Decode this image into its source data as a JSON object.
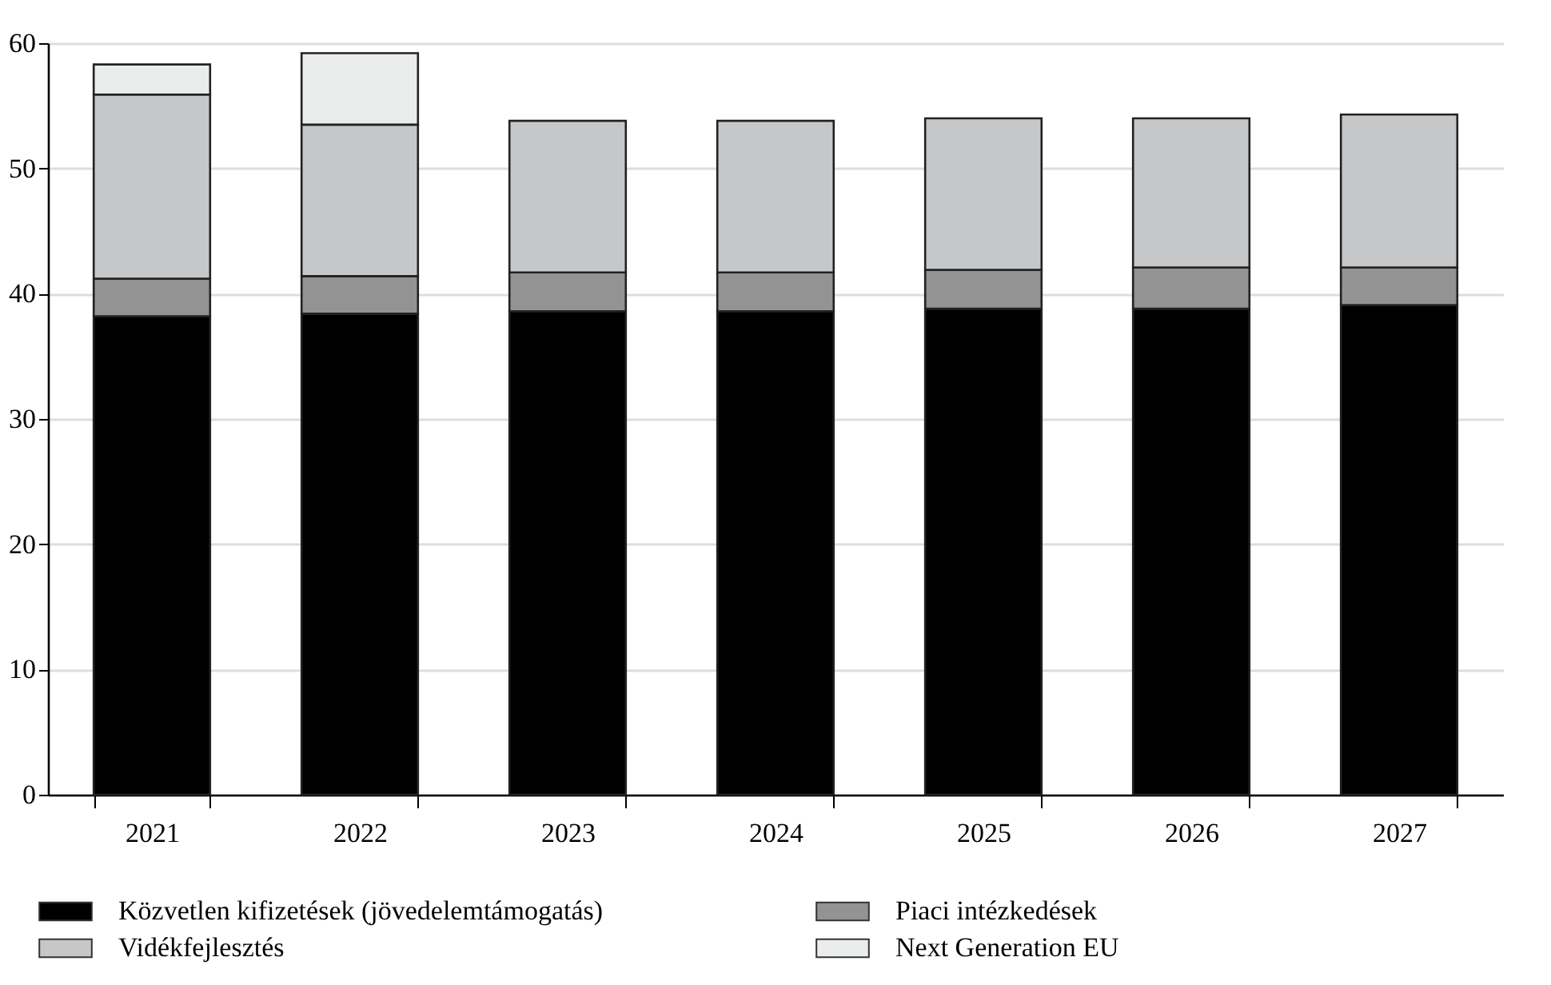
{
  "chart_data": {
    "type": "bar",
    "stacked": true,
    "categories": [
      "2021",
      "2022",
      "2023",
      "2024",
      "2025",
      "2026",
      "2027"
    ],
    "series": [
      {
        "name": "Közvetlen kifizetések (jövedelemtámogatás)",
        "color": "#000000",
        "values": [
          38.2,
          38.4,
          38.6,
          38.6,
          38.8,
          38.8,
          39.1
        ]
      },
      {
        "name": "Piaci intézkedések",
        "color": "#939393",
        "values": [
          3.0,
          3.0,
          3.1,
          3.1,
          3.1,
          3.3,
          3.0
        ]
      },
      {
        "name": "Vidékfejlesztés",
        "color": "#c6c7c8",
        "values": [
          14.7,
          12.1,
          12.1,
          12.1,
          12.1,
          11.9,
          12.2
        ]
      },
      {
        "name": "Next Generation EU",
        "color": "#ebecec",
        "values": [
          2.4,
          5.7,
          null,
          null,
          null,
          null,
          null
        ]
      }
    ],
    "ylim": [
      0,
      60
    ],
    "yticks": [
      0,
      10,
      20,
      30,
      40,
      50,
      60
    ],
    "grid": "y",
    "legend": "bottom"
  }
}
